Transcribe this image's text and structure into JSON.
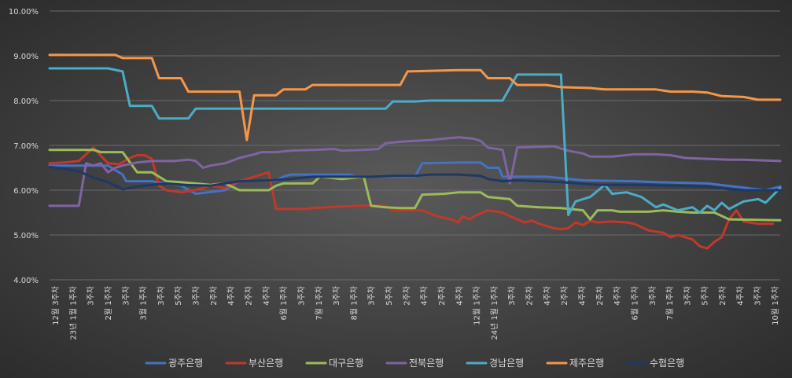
{
  "chart_data": {
    "type": "line",
    "title": "",
    "xlabel": "",
    "ylabel": "",
    "ylim": [
      4.0,
      10.0
    ],
    "yticks": [
      "4.00%",
      "5.00%",
      "6.00%",
      "7.00%",
      "8.00%",
      "9.00%",
      "10.00%"
    ],
    "grid": true,
    "legend_position": "bottom",
    "x_tick_labels": [
      "12월 3주차",
      "23년 1월 1주차",
      "3주차",
      "2월 1주차",
      "3주차",
      "3월 1주차",
      "3주차",
      "5주차",
      "3주차",
      "2주차",
      "4주차",
      "2주차",
      "4주차",
      "6월 1주차",
      "3주차",
      "7월 1주차",
      "3주차",
      "8월 1주차",
      "3주차",
      "5주차",
      "2주차",
      "4주차",
      "2주차",
      "4주차",
      "12월 1주차",
      "24년 1월 1주차",
      "3주차",
      "2주차",
      "4주차",
      "2주차",
      "4주차",
      "2주차",
      "4주차",
      "6월 1주차",
      "3주차",
      "7월 1주차",
      "3주차",
      "5주차",
      "2주차",
      "4주차",
      "3주차",
      "10월 1주차"
    ],
    "series": [
      {
        "name": "광주은행",
        "color": "#4472c4",
        "points": [
          [
            0,
            6.55
          ],
          [
            16,
            6.55
          ],
          [
            20,
            6.35
          ],
          [
            21,
            6.2
          ],
          [
            28,
            6.2
          ],
          [
            36,
            6.1
          ],
          [
            40,
            5.92
          ],
          [
            48,
            6.0
          ],
          [
            52,
            6.2
          ],
          [
            62,
            6.22
          ],
          [
            64,
            6.3
          ],
          [
            66,
            6.35
          ],
          [
            82,
            6.35
          ],
          [
            84,
            6.3
          ],
          [
            100,
            6.3
          ],
          [
            102,
            6.6
          ],
          [
            114,
            6.62
          ],
          [
            118,
            6.62
          ],
          [
            120,
            6.5
          ],
          [
            123,
            6.5
          ],
          [
            124,
            6.3
          ],
          [
            136,
            6.3
          ],
          [
            146,
            6.22
          ],
          [
            160,
            6.2
          ],
          [
            166,
            6.18
          ],
          [
            180,
            6.15
          ],
          [
            196,
            6.0
          ],
          [
            200,
            6.08
          ]
        ]
      },
      {
        "name": "부산은행",
        "color": "#c0392b",
        "points": [
          [
            0,
            6.6
          ],
          [
            4,
            6.62
          ],
          [
            8,
            6.65
          ],
          [
            12,
            6.95
          ],
          [
            16,
            6.6
          ],
          [
            19,
            6.58
          ],
          [
            22,
            6.72
          ],
          [
            24,
            6.78
          ],
          [
            26,
            6.78
          ],
          [
            28,
            6.7
          ],
          [
            30,
            6.1
          ],
          [
            32,
            6.0
          ],
          [
            36,
            5.95
          ],
          [
            40,
            6.0
          ],
          [
            44,
            6.1
          ],
          [
            48,
            6.05
          ],
          [
            52,
            6.2
          ],
          [
            56,
            6.3
          ],
          [
            60,
            6.4
          ],
          [
            62,
            5.58
          ],
          [
            70,
            5.58
          ],
          [
            72,
            5.6
          ],
          [
            76,
            5.62
          ],
          [
            84,
            5.65
          ],
          [
            92,
            5.65
          ],
          [
            94,
            5.55
          ],
          [
            98,
            5.55
          ],
          [
            102,
            5.55
          ],
          [
            106,
            5.42
          ],
          [
            110,
            5.35
          ],
          [
            112,
            5.28
          ],
          [
            113,
            5.42
          ],
          [
            115,
            5.35
          ],
          [
            117,
            5.45
          ],
          [
            120,
            5.55
          ],
          [
            124,
            5.5
          ],
          [
            126,
            5.42
          ],
          [
            130,
            5.28
          ],
          [
            132,
            5.32
          ],
          [
            134,
            5.25
          ],
          [
            138,
            5.15
          ],
          [
            140,
            5.13
          ],
          [
            142,
            5.15
          ],
          [
            144,
            5.28
          ],
          [
            146,
            5.22
          ],
          [
            148,
            5.32
          ],
          [
            150,
            5.28
          ],
          [
            154,
            5.3
          ],
          [
            158,
            5.28
          ],
          [
            160,
            5.25
          ],
          [
            164,
            5.1
          ],
          [
            168,
            5.05
          ],
          [
            170,
            4.95
          ],
          [
            172,
            5.0
          ],
          [
            176,
            4.9
          ],
          [
            178,
            4.75
          ],
          [
            180,
            4.7
          ],
          [
            182,
            4.85
          ],
          [
            184,
            4.95
          ],
          [
            186,
            5.35
          ],
          [
            188,
            5.55
          ],
          [
            190,
            5.3
          ],
          [
            194,
            5.25
          ],
          [
            198,
            5.25
          ]
        ]
      },
      {
        "name": "대구은행",
        "color": "#9bbb59",
        "points": [
          [
            0,
            6.9
          ],
          [
            12,
            6.9
          ],
          [
            14,
            6.85
          ],
          [
            20,
            6.85
          ],
          [
            24,
            6.4
          ],
          [
            28,
            6.4
          ],
          [
            32,
            6.2
          ],
          [
            36,
            6.18
          ],
          [
            44,
            6.12
          ],
          [
            48,
            6.15
          ],
          [
            52,
            6.0
          ],
          [
            58,
            6.0
          ],
          [
            60,
            6.0
          ],
          [
            62,
            6.1
          ],
          [
            64,
            6.15
          ],
          [
            72,
            6.15
          ],
          [
            74,
            6.3
          ],
          [
            80,
            6.25
          ],
          [
            86,
            6.3
          ],
          [
            88,
            5.65
          ],
          [
            92,
            5.62
          ],
          [
            96,
            5.6
          ],
          [
            100,
            5.6
          ],
          [
            102,
            5.9
          ],
          [
            108,
            5.92
          ],
          [
            112,
            5.95
          ],
          [
            118,
            5.95
          ],
          [
            120,
            5.85
          ],
          [
            126,
            5.8
          ],
          [
            128,
            5.65
          ],
          [
            134,
            5.62
          ],
          [
            140,
            5.6
          ],
          [
            146,
            5.55
          ],
          [
            148,
            5.35
          ],
          [
            150,
            5.55
          ],
          [
            154,
            5.55
          ],
          [
            156,
            5.52
          ],
          [
            164,
            5.52
          ],
          [
            168,
            5.55
          ],
          [
            172,
            5.52
          ],
          [
            176,
            5.5
          ],
          [
            182,
            5.5
          ],
          [
            186,
            5.35
          ],
          [
            200,
            5.33
          ]
        ]
      },
      {
        "name": "전북은행",
        "color": "#8064a2",
        "points": [
          [
            0,
            5.65
          ],
          [
            8,
            5.65
          ],
          [
            10,
            6.6
          ],
          [
            12,
            6.55
          ],
          [
            14,
            6.6
          ],
          [
            16,
            6.4
          ],
          [
            18,
            6.5
          ],
          [
            20,
            6.55
          ],
          [
            24,
            6.62
          ],
          [
            28,
            6.65
          ],
          [
            34,
            6.65
          ],
          [
            38,
            6.68
          ],
          [
            40,
            6.65
          ],
          [
            42,
            6.5
          ],
          [
            44,
            6.55
          ],
          [
            48,
            6.6
          ],
          [
            52,
            6.72
          ],
          [
            56,
            6.8
          ],
          [
            58,
            6.85
          ],
          [
            62,
            6.85
          ],
          [
            66,
            6.88
          ],
          [
            72,
            6.9
          ],
          [
            78,
            6.92
          ],
          [
            80,
            6.88
          ],
          [
            86,
            6.9
          ],
          [
            90,
            6.92
          ],
          [
            92,
            7.05
          ],
          [
            96,
            7.08
          ],
          [
            100,
            7.1
          ],
          [
            104,
            7.12
          ],
          [
            108,
            7.15
          ],
          [
            112,
            7.18
          ],
          [
            116,
            7.15
          ],
          [
            118,
            7.1
          ],
          [
            120,
            6.95
          ],
          [
            124,
            6.9
          ],
          [
            126,
            6.15
          ],
          [
            128,
            6.95
          ],
          [
            138,
            6.98
          ],
          [
            142,
            6.88
          ],
          [
            146,
            6.82
          ],
          [
            148,
            6.75
          ],
          [
            154,
            6.75
          ],
          [
            160,
            6.8
          ],
          [
            166,
            6.8
          ],
          [
            170,
            6.78
          ],
          [
            174,
            6.72
          ],
          [
            180,
            6.7
          ],
          [
            186,
            6.68
          ],
          [
            190,
            6.68
          ],
          [
            200,
            6.65
          ]
        ]
      },
      {
        "name": "경남은행",
        "color": "#4bacc6",
        "points": [
          [
            0,
            8.72
          ],
          [
            16,
            8.72
          ],
          [
            20,
            8.65
          ],
          [
            22,
            7.88
          ],
          [
            28,
            7.88
          ],
          [
            30,
            7.6
          ],
          [
            38,
            7.6
          ],
          [
            40,
            7.82
          ],
          [
            92,
            7.82
          ],
          [
            94,
            7.98
          ],
          [
            100,
            7.98
          ],
          [
            104,
            8.0
          ],
          [
            124,
            8.0
          ],
          [
            128,
            8.58
          ],
          [
            140,
            8.58
          ],
          [
            142,
            5.45
          ],
          [
            144,
            5.75
          ],
          [
            148,
            5.85
          ],
          [
            152,
            6.12
          ],
          [
            154,
            5.92
          ],
          [
            158,
            5.95
          ],
          [
            162,
            5.85
          ],
          [
            166,
            5.62
          ],
          [
            168,
            5.68
          ],
          [
            172,
            5.55
          ],
          [
            176,
            5.62
          ],
          [
            178,
            5.5
          ],
          [
            180,
            5.65
          ],
          [
            182,
            5.55
          ],
          [
            184,
            5.72
          ],
          [
            186,
            5.58
          ],
          [
            190,
            5.75
          ],
          [
            194,
            5.8
          ],
          [
            196,
            5.72
          ],
          [
            200,
            6.05
          ]
        ]
      },
      {
        "name": "제주은행",
        "color": "#f79646",
        "points": [
          [
            0,
            9.02
          ],
          [
            18,
            9.02
          ],
          [
            20,
            8.95
          ],
          [
            28,
            8.95
          ],
          [
            30,
            8.5
          ],
          [
            36,
            8.5
          ],
          [
            38,
            8.2
          ],
          [
            52,
            8.2
          ],
          [
            54,
            7.12
          ],
          [
            56,
            8.12
          ],
          [
            62,
            8.12
          ],
          [
            64,
            8.25
          ],
          [
            70,
            8.25
          ],
          [
            72,
            8.35
          ],
          [
            96,
            8.35
          ],
          [
            98,
            8.65
          ],
          [
            112,
            8.68
          ],
          [
            118,
            8.68
          ],
          [
            120,
            8.5
          ],
          [
            126,
            8.5
          ],
          [
            128,
            8.35
          ],
          [
            136,
            8.35
          ],
          [
            140,
            8.3
          ],
          [
            148,
            8.28
          ],
          [
            152,
            8.25
          ],
          [
            166,
            8.25
          ],
          [
            170,
            8.2
          ],
          [
            176,
            8.2
          ],
          [
            180,
            8.18
          ],
          [
            184,
            8.1
          ],
          [
            190,
            8.08
          ],
          [
            194,
            8.02
          ],
          [
            200,
            8.02
          ]
        ]
      },
      {
        "name": "수협은행",
        "color": "#1f3864",
        "points": [
          [
            0,
            6.52
          ],
          [
            4,
            6.48
          ],
          [
            8,
            6.42
          ],
          [
            12,
            6.28
          ],
          [
            16,
            6.18
          ],
          [
            20,
            6.02
          ],
          [
            24,
            6.08
          ],
          [
            28,
            6.12
          ],
          [
            32,
            6.15
          ],
          [
            36,
            6.12
          ],
          [
            44,
            6.1
          ],
          [
            48,
            6.15
          ],
          [
            52,
            6.2
          ],
          [
            60,
            6.22
          ],
          [
            66,
            6.25
          ],
          [
            72,
            6.3
          ],
          [
            82,
            6.3
          ],
          [
            88,
            6.3
          ],
          [
            94,
            6.32
          ],
          [
            100,
            6.32
          ],
          [
            104,
            6.35
          ],
          [
            112,
            6.35
          ],
          [
            118,
            6.32
          ],
          [
            120,
            6.25
          ],
          [
            124,
            6.2
          ],
          [
            128,
            6.22
          ],
          [
            134,
            6.2
          ],
          [
            140,
            6.18
          ],
          [
            150,
            6.12
          ],
          [
            160,
            6.12
          ],
          [
            170,
            6.1
          ],
          [
            180,
            6.08
          ],
          [
            186,
            6.02
          ],
          [
            190,
            6.0
          ],
          [
            200,
            6.0
          ]
        ]
      }
    ]
  }
}
